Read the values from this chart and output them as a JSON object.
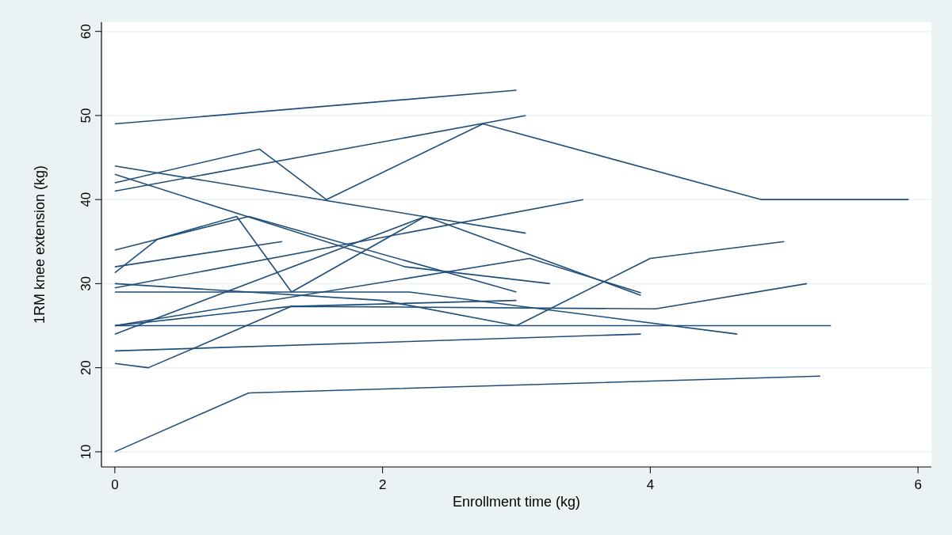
{
  "chart_data": {
    "type": "line",
    "xlabel": "Enrollment time (kg)",
    "ylabel": "1RM knee extension (kg)",
    "xlim": [
      -0.1,
      6.1
    ],
    "ylim": [
      8.2,
      61.1
    ],
    "xticks": [
      0,
      2,
      4,
      6
    ],
    "yticks": [
      10,
      20,
      30,
      40,
      50,
      60
    ],
    "grid": "y",
    "marker": "none",
    "line_style": "solid",
    "series": [
      {
        "color": "#1f4e79",
        "x": [
          0,
          3.0
        ],
        "values": [
          49,
          53
        ]
      },
      {
        "color": "#1f4e79",
        "x": [
          0,
          1.08,
          1.58,
          2.75,
          4.83,
          5.93
        ],
        "values": [
          42,
          46,
          40,
          49,
          40,
          40
        ]
      },
      {
        "color": "#1f4e79",
        "x": [
          0,
          3.07
        ],
        "values": [
          41,
          50
        ]
      },
      {
        "color": "#1f4e79",
        "x": [
          0,
          3.07
        ],
        "values": [
          44,
          36
        ]
      },
      {
        "color": "#1f4e79",
        "x": [
          0,
          2.17,
          3.25
        ],
        "values": [
          43,
          32,
          30
        ]
      },
      {
        "color": "#1f4e79",
        "x": [
          0,
          1.0,
          3.0
        ],
        "values": [
          34,
          38,
          29
        ]
      },
      {
        "color": "#1f4e79",
        "x": [
          0,
          0.32,
          0.91,
          1.32,
          2.32
        ],
        "values": [
          31.3,
          35.3,
          38,
          29,
          38
        ]
      },
      {
        "color": "#1f4e79",
        "x": [
          0,
          1.25
        ],
        "values": [
          32,
          35
        ]
      },
      {
        "color": "#1f4e79",
        "x": [
          0,
          3.5
        ],
        "values": [
          29.5,
          40
        ]
      },
      {
        "color": "#1f4e79",
        "x": [
          0,
          3.1,
          3.93
        ],
        "values": [
          25,
          33,
          28.9
        ]
      },
      {
        "color": "#1f4e79",
        "x": [
          0,
          2.0,
          3.0,
          4.0,
          5.0
        ],
        "values": [
          30,
          28,
          25,
          33,
          35
        ]
      },
      {
        "color": "#1f4e79",
        "x": [
          0,
          2.2,
          4.65
        ],
        "values": [
          29,
          29,
          24
        ]
      },
      {
        "color": "#1f4e79",
        "x": [
          0,
          1.32,
          4.04,
          5.17
        ],
        "values": [
          25,
          27.3,
          27,
          30
        ]
      },
      {
        "color": "#1f4e79",
        "x": [
          0,
          5.35
        ],
        "values": [
          25,
          25
        ]
      },
      {
        "color": "#1f4e79",
        "x": [
          0,
          2.32,
          3.93
        ],
        "values": [
          24,
          38,
          28.6
        ]
      },
      {
        "color": "#1f4e79",
        "x": [
          0,
          3.93
        ],
        "values": [
          22,
          24
        ]
      },
      {
        "color": "#1f4e79",
        "x": [
          0,
          0.25,
          1.32,
          3.0
        ],
        "values": [
          20.5,
          20,
          27.3,
          28
        ]
      },
      {
        "color": "#1f4e79",
        "x": [
          0,
          1.0,
          5.27
        ],
        "values": [
          10,
          17,
          19
        ]
      }
    ]
  }
}
